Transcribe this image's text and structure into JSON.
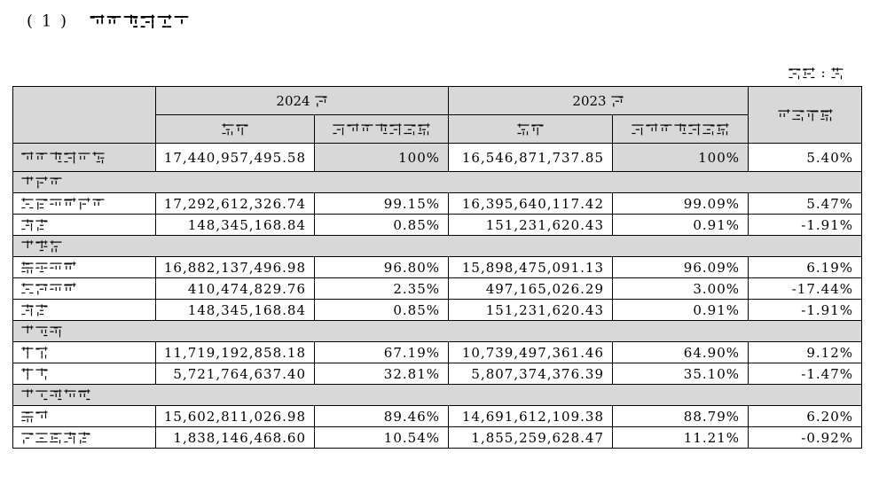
{
  "title": "（1） 营业收入构成",
  "unit": "单位：元",
  "headers": {
    "year_a": "2024",
    "year_b": "2023",
    "nian": "年",
    "amount": "金额",
    "share": "占营业收入比重",
    "yoy": "同比增减"
  },
  "total": {
    "label": "营业收入合计",
    "amt_a": "17,440,957,495.58",
    "pct_a": "100%",
    "amt_b": "16,546,871,737.85",
    "pct_b": "100%",
    "yoy": "5.40%"
  },
  "sections": [
    {
      "label": "分行业",
      "rows": [
        {
          "label": "网络游戏行业",
          "amt_a": "17,292,612,326.74",
          "pct_a": "99.15%",
          "amt_b": "16,395,640,117.42",
          "pct_b": "99.09%",
          "yoy": "5.47%"
        },
        {
          "label": "其他",
          "amt_a": "148,345,168.84",
          "pct_a": "0.85%",
          "amt_b": "151,231,620.43",
          "pct_b": "0.91%",
          "yoy": "-1.91%"
        }
      ]
    },
    {
      "label": "分产品",
      "rows": [
        {
          "label": "移动游戏",
          "amt_a": "16,882,137,496.98",
          "pct_a": "96.80%",
          "amt_b": "15,898,475,091.13",
          "pct_b": "96.09%",
          "yoy": "6.19%"
        },
        {
          "label": "网页游戏",
          "amt_a": "410,474,829.76",
          "pct_a": "2.35%",
          "amt_b": "497,165,026.29",
          "pct_b": "3.00%",
          "yoy": "-17.44%"
        },
        {
          "label": "其他",
          "amt_a": "148,345,168.84",
          "pct_a": "0.85%",
          "amt_b": "151,231,620.43",
          "pct_b": "0.91%",
          "yoy": "-1.91%"
        }
      ]
    },
    {
      "label": "分地区",
      "rows": [
        {
          "label": "境内",
          "amt_a": "11,719,192,858.18",
          "pct_a": "67.19%",
          "amt_b": "10,739,497,361.46",
          "pct_b": "64.90%",
          "yoy": "9.12%"
        },
        {
          "label": "境外",
          "amt_a": "5,721,764,637.40",
          "pct_a": "32.81%",
          "amt_b": "5,807,374,376.39",
          "pct_b": "35.10%",
          "yoy": "-1.47%"
        }
      ]
    },
    {
      "label": "分销售模式",
      "rows": [
        {
          "label": "自营",
          "amt_a": "15,602,811,026.98",
          "pct_a": "89.46%",
          "amt_b": "14,691,612,109.38",
          "pct_b": "88.79%",
          "yoy": "6.20%"
        },
        {
          "label": "联运及其他",
          "amt_a": "1,838,146,468.60",
          "pct_a": "10.54%",
          "amt_b": "1,855,259,628.47",
          "pct_b": "11.21%",
          "yoy": "-0.92%"
        }
      ]
    }
  ]
}
